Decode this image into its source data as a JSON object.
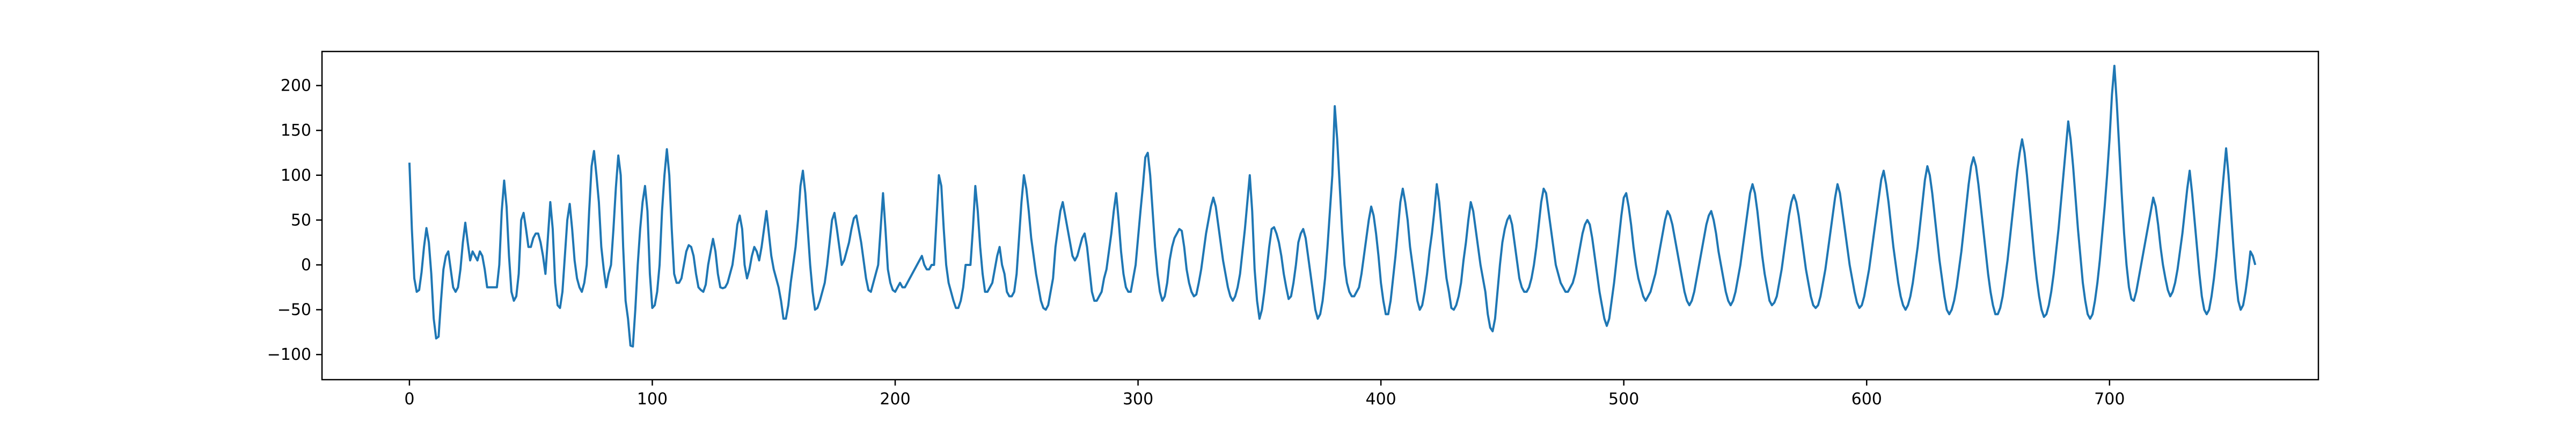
{
  "chart_data": {
    "type": "line",
    "title": "",
    "xlabel": "",
    "ylabel": "",
    "xlim": [
      -36,
      786
    ],
    "ylim": [
      -128,
      238
    ],
    "x_ticks": [
      0,
      100,
      200,
      300,
      400,
      500,
      600,
      700
    ],
    "y_ticks": [
      -100,
      -50,
      0,
      50,
      100,
      150,
      200
    ],
    "x_tick_labels": [
      "0",
      "100",
      "200",
      "300",
      "400",
      "500",
      "600",
      "700"
    ],
    "y_tick_labels": [
      "−100",
      "−50",
      "0",
      "50",
      "100",
      "150",
      "200"
    ],
    "grid": false,
    "series": [
      {
        "color": "#1f77b4",
        "x_start": 0,
        "x_step": 1,
        "values": [
          114,
          40,
          -15,
          -30,
          -28,
          -8,
          20,
          41,
          25,
          -10,
          -60,
          -82,
          -80,
          -40,
          -5,
          10,
          15,
          -5,
          -25,
          -30,
          -25,
          -5,
          25,
          47,
          25,
          5,
          15,
          10,
          5,
          15,
          10,
          -5,
          -25,
          -25,
          -25,
          -25,
          -25,
          0,
          60,
          94,
          65,
          10,
          -30,
          -40,
          -35,
          -10,
          50,
          58,
          40,
          20,
          20,
          30,
          35,
          35,
          25,
          10,
          -10,
          30,
          70,
          40,
          -20,
          -45,
          -48,
          -30,
          10,
          50,
          68,
          40,
          5,
          -15,
          -25,
          -30,
          -20,
          0,
          60,
          110,
          127,
          100,
          70,
          20,
          -5,
          -25,
          -10,
          0,
          40,
          86,
          122,
          100,
          20,
          -40,
          -60,
          -90,
          -91,
          -50,
          0,
          40,
          70,
          88,
          60,
          -10,
          -48,
          -45,
          -30,
          0,
          60,
          100,
          129,
          100,
          40,
          -10,
          -20,
          -20,
          -15,
          0,
          15,
          22,
          20,
          10,
          -10,
          -25,
          -28,
          -30,
          -22,
          0,
          15,
          29,
          15,
          -10,
          -25,
          -26,
          -25,
          -20,
          -10,
          0,
          20,
          45,
          55,
          40,
          0,
          -15,
          -5,
          10,
          20,
          15,
          5,
          20,
          40,
          60,
          35,
          10,
          -5,
          -15,
          -25,
          -40,
          -60,
          -60,
          -45,
          -20,
          0,
          20,
          50,
          88,
          105,
          80,
          40,
          0,
          -30,
          -50,
          -48,
          -40,
          -30,
          -20,
          0,
          25,
          50,
          58,
          40,
          20,
          0,
          5,
          15,
          25,
          40,
          52,
          55,
          40,
          25,
          5,
          -15,
          -28,
          -30,
          -20,
          -10,
          0,
          40,
          80,
          40,
          -5,
          -20,
          -28,
          -30,
          -25,
          -20,
          -25,
          -25,
          -20,
          -15,
          -10,
          -5,
          0,
          5,
          10,
          0,
          -5,
          -5,
          0,
          0,
          50,
          100,
          88,
          40,
          0,
          -20,
          -30,
          -40,
          -48,
          -48,
          -40,
          -25,
          0,
          0,
          0,
          40,
          88,
          60,
          20,
          -10,
          -30,
          -30,
          -25,
          -20,
          -5,
          10,
          20,
          0,
          -10,
          -30,
          -35,
          -35,
          -30,
          -10,
          30,
          70,
          100,
          85,
          60,
          30,
          10,
          -10,
          -25,
          -40,
          -48,
          -50,
          -45,
          -30,
          -15,
          20,
          40,
          60,
          70,
          55,
          40,
          25,
          10,
          5,
          10,
          20,
          30,
          35,
          20,
          -5,
          -30,
          -40,
          -40,
          -35,
          -30,
          -15,
          -5,
          15,
          35,
          60,
          80,
          50,
          15,
          -10,
          -25,
          -30,
          -30,
          -15,
          0,
          30,
          60,
          88,
          120,
          125,
          100,
          60,
          20,
          -10,
          -30,
          -40,
          -35,
          -20,
          5,
          20,
          30,
          35,
          40,
          38,
          20,
          -5,
          -20,
          -30,
          -35,
          -33,
          -20,
          -5,
          15,
          35,
          50,
          65,
          75,
          65,
          45,
          25,
          5,
          -10,
          -25,
          -35,
          -40,
          -35,
          -25,
          -10,
          15,
          40,
          70,
          100,
          60,
          -5,
          -40,
          -60,
          -50,
          -30,
          -5,
          20,
          40,
          42,
          35,
          25,
          10,
          -10,
          -25,
          -38,
          -35,
          -20,
          0,
          25,
          35,
          40,
          30,
          10,
          -10,
          -30,
          -50,
          -60,
          -55,
          -40,
          -15,
          20,
          60,
          100,
          177,
          140,
          90,
          40,
          0,
          -20,
          -30,
          -35,
          -35,
          -30,
          -25,
          -10,
          10,
          30,
          50,
          65,
          55,
          35,
          10,
          -20,
          -40,
          -55,
          -55,
          -40,
          -15,
          10,
          40,
          70,
          85,
          70,
          50,
          20,
          0,
          -20,
          -40,
          -50,
          -45,
          -30,
          -10,
          15,
          35,
          60,
          90,
          70,
          40,
          10,
          -15,
          -30,
          -48,
          -50,
          -45,
          -35,
          -20,
          5,
          25,
          50,
          70,
          60,
          40,
          20,
          0,
          -15,
          -30,
          -55,
          -70,
          -74,
          -60,
          -30,
          0,
          25,
          40,
          50,
          55,
          45,
          25,
          5,
          -15,
          -25,
          -30,
          -30,
          -25,
          -15,
          0,
          20,
          45,
          70,
          85,
          80,
          60,
          40,
          20,
          0,
          -10,
          -20,
          -25,
          -30,
          -30,
          -25,
          -20,
          -10,
          5,
          20,
          35,
          45,
          50,
          45,
          30,
          10,
          -10,
          -30,
          -45,
          -60,
          -68,
          -60,
          -40,
          -20,
          5,
          30,
          55,
          75,
          80,
          65,
          45,
          20,
          0,
          -15,
          -25,
          -35,
          -40,
          -35,
          -30,
          -20,
          -10,
          5,
          20,
          35,
          50,
          60,
          55,
          45,
          30,
          15,
          0,
          -15,
          -30,
          -40,
          -45,
          -40,
          -30,
          -15,
          0,
          15,
          30,
          45,
          55,
          60,
          50,
          35,
          15,
          0,
          -15,
          -30,
          -40,
          -45,
          -40,
          -30,
          -15,
          0,
          20,
          40,
          60,
          80,
          90,
          80,
          60,
          35,
          10,
          -10,
          -25,
          -40,
          -45,
          -42,
          -35,
          -20,
          -5,
          15,
          35,
          55,
          70,
          78,
          70,
          55,
          35,
          15,
          -5,
          -20,
          -35,
          -45,
          -48,
          -45,
          -35,
          -20,
          -5,
          15,
          35,
          55,
          75,
          90,
          80,
          60,
          40,
          20,
          0,
          -15,
          -30,
          -42,
          -48,
          -45,
          -35,
          -20,
          -5,
          15,
          35,
          55,
          75,
          95,
          105,
          90,
          70,
          45,
          20,
          0,
          -20,
          -35,
          -45,
          -50,
          -45,
          -35,
          -20,
          0,
          20,
          45,
          70,
          95,
          110,
          100,
          80,
          55,
          30,
          5,
          -15,
          -35,
          -50,
          -55,
          -50,
          -40,
          -25,
          -5,
          15,
          40,
          65,
          90,
          110,
          120,
          110,
          90,
          65,
          40,
          15,
          -10,
          -30,
          -45,
          -55,
          -55,
          -48,
          -35,
          -15,
          5,
          30,
          55,
          80,
          105,
          125,
          140,
          125,
          100,
          70,
          40,
          10,
          -15,
          -35,
          -50,
          -58,
          -55,
          -45,
          -30,
          -10,
          15,
          40,
          70,
          100,
          130,
          160,
          140,
          110,
          75,
          40,
          10,
          -20,
          -40,
          -55,
          -60,
          -55,
          -40,
          -20,
          5,
          35,
          65,
          100,
          140,
          190,
          222,
          180,
          130,
          80,
          35,
          0,
          -25,
          -38,
          -40,
          -30,
          -15,
          0,
          15,
          30,
          45,
          60,
          75,
          65,
          45,
          20,
          0,
          -15,
          -28,
          -35,
          -30,
          -20,
          -5,
          15,
          35,
          60,
          85,
          105,
          80,
          50,
          20,
          -10,
          -35,
          -50,
          -55,
          -50,
          -35,
          -15,
          10,
          40,
          70,
          100,
          130,
          100,
          60,
          20,
          -15,
          -40,
          -50,
          -45,
          -30,
          -10,
          15,
          10,
          0
        ]
      }
    ]
  }
}
